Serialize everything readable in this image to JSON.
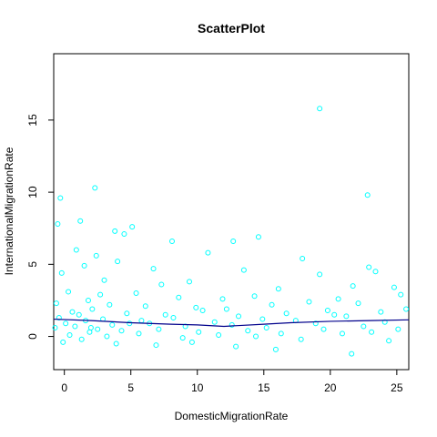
{
  "chart_data": {
    "type": "scatter",
    "title": "ScatterPlot",
    "xlabel": "DomesticMigrationRate",
    "ylabel": "InternationalMigrationRate",
    "xlim": [
      -0.8,
      25.9
    ],
    "ylim": [
      -2.3,
      19.6
    ],
    "x_ticks": [
      "0",
      "5",
      "10",
      "15",
      "20",
      "25"
    ],
    "y_ticks": [
      "0",
      "5",
      "10",
      "15"
    ],
    "grid": false,
    "legend": "none",
    "point_color": "#00ffff",
    "smooth_color": "#00008b",
    "series": [
      {
        "x": [
          19.2,
          2.3,
          -0.3,
          22.8,
          1.2,
          4.5,
          14.6,
          12.7,
          3.8,
          5.1,
          -0.5,
          8.1,
          10.8,
          17.9,
          22.9,
          0.9,
          2.4,
          4.0,
          6.7,
          13.5,
          19.2,
          23.4,
          -0.2,
          1.5,
          3.0,
          7.3,
          9.4,
          16.1,
          21.7,
          24.8,
          0.3,
          2.7,
          5.4,
          8.6,
          11.9,
          14.3,
          18.4,
          20.6,
          25.3,
          -0.6,
          1.8,
          3.4,
          6.1,
          9.9,
          12.2,
          15.6,
          19.8,
          22.1,
          0.6,
          2.1,
          4.7,
          7.6,
          10.4,
          13.1,
          16.7,
          20.3,
          23.8,
          25.7,
          -0.4,
          1.1,
          2.9,
          5.8,
          8.2,
          11.3,
          14.9,
          17.4,
          21.2,
          24.1,
          0.1,
          1.6,
          3.6,
          6.4,
          9.1,
          12.6,
          15.2,
          18.9,
          22.5,
          25.1,
          -0.7,
          0.8,
          2.5,
          4.3,
          7.1,
          10.1,
          13.8,
          16.3,
          19.5,
          23.1,
          0.4,
          1.9,
          3.2,
          5.6,
          8.9,
          11.6,
          14.4,
          17.8,
          20.9,
          24.4,
          -0.1,
          1.3,
          3.9,
          6.9,
          9.6,
          12.9,
          15.9,
          21.6,
          2.0,
          4.9
        ],
        "y": [
          15.8,
          10.3,
          9.6,
          9.8,
          8.0,
          7.1,
          6.9,
          6.6,
          7.3,
          7.6,
          7.8,
          6.6,
          5.8,
          5.4,
          4.8,
          6.0,
          5.6,
          5.2,
          4.7,
          4.6,
          4.3,
          4.5,
          4.4,
          4.9,
          3.9,
          3.6,
          3.8,
          3.3,
          3.5,
          3.4,
          3.1,
          2.9,
          3.0,
          2.7,
          2.6,
          2.8,
          2.4,
          2.6,
          2.9,
          2.3,
          2.5,
          2.2,
          2.1,
          2.0,
          1.9,
          2.2,
          1.8,
          2.3,
          1.7,
          1.9,
          1.6,
          1.5,
          1.8,
          1.4,
          1.6,
          1.5,
          1.7,
          1.9,
          1.3,
          1.5,
          1.2,
          1.1,
          1.3,
          1.0,
          1.2,
          1.1,
          1.4,
          1.0,
          0.9,
          1.1,
          0.8,
          0.9,
          0.7,
          0.8,
          0.6,
          0.9,
          0.7,
          0.5,
          0.6,
          0.7,
          0.5,
          0.4,
          0.5,
          0.3,
          0.4,
          0.2,
          0.5,
          0.3,
          0.1,
          0.3,
          0.0,
          0.2,
          -0.1,
          0.1,
          0.0,
          -0.2,
          0.2,
          -0.3,
          -0.4,
          -0.2,
          -0.5,
          -0.6,
          -0.4,
          -0.7,
          -0.9,
          -1.2,
          0.6,
          0.9
        ]
      }
    ],
    "smooth_line": {
      "x": [
        -0.8,
        2,
        5,
        8,
        10,
        12,
        13,
        15,
        17,
        20,
        23,
        25.9
      ],
      "y": [
        1.2,
        1.1,
        0.95,
        0.85,
        0.8,
        0.7,
        0.75,
        0.85,
        0.95,
        1.05,
        1.1,
        1.15
      ]
    }
  }
}
